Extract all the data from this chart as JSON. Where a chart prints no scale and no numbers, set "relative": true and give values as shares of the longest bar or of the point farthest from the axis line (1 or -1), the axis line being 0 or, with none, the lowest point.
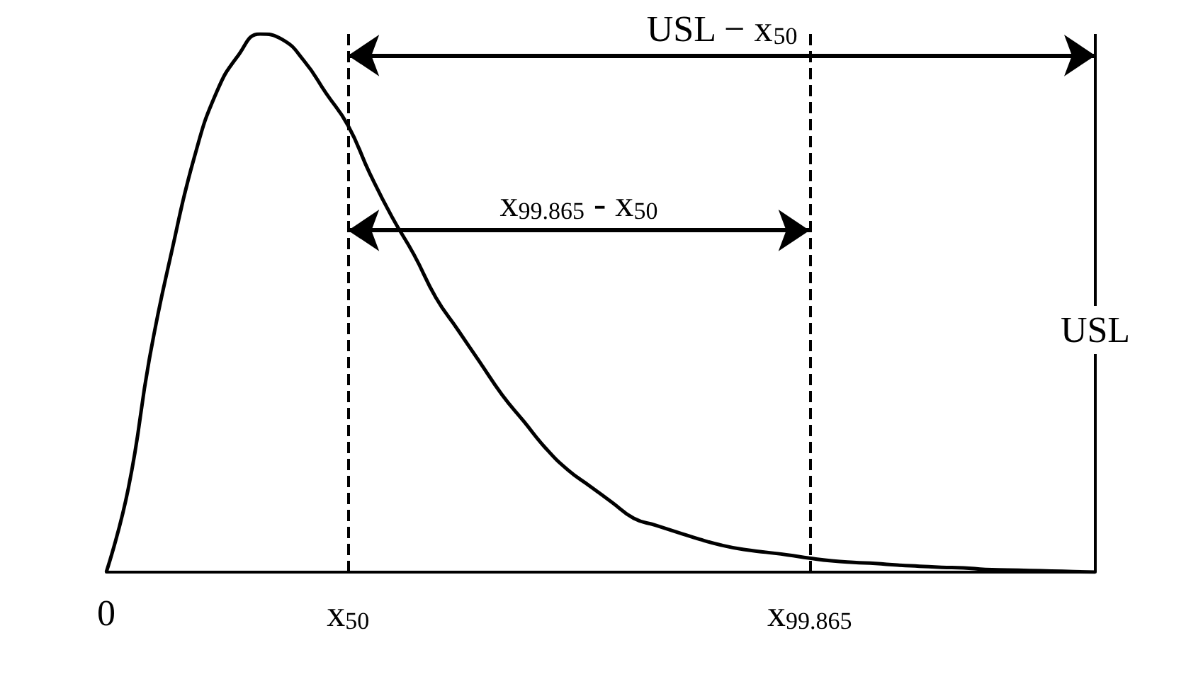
{
  "chart_data": {
    "type": "line",
    "relative": true,
    "tick_labels": "x",
    "grid": false,
    "marker": "none",
    "line_style": "solid",
    "categories": [
      "0",
      null,
      null,
      null,
      null,
      null,
      null,
      null,
      null,
      null,
      null,
      "x$_{50}$",
      null,
      null,
      null,
      null,
      null,
      null,
      null,
      null,
      null,
      null,
      null,
      null,
      null,
      null,
      null,
      null,
      null,
      null,
      null,
      null,
      "x$_{99.865}$",
      null,
      null,
      null,
      null,
      null,
      null,
      null,
      null,
      null,
      null,
      null,
      null,
      null
    ],
    "series": [
      {
        "color": "#000000",
        "values": [
          0,
          0.155,
          0.405,
          0.6,
          0.77,
          0.89,
          0.96,
          1,
          0.99,
          0.95,
          0.89,
          0.83,
          0.74,
          0.66,
          0.59,
          0.51,
          0.45,
          0.39,
          0.33,
          0.28,
          0.23,
          0.19,
          0.16,
          0.13,
          0.1,
          0.087,
          0.074,
          0.061,
          0.05,
          0.042,
          0.037,
          0.032,
          0.026,
          0.021,
          0.018,
          0.016,
          0.013,
          0.011,
          0.009,
          0.008,
          0.005,
          0.004,
          0.003,
          0.002,
          0.001,
          0
        ]
      }
    ],
    "ref_lines": [
      {
        "axis": "x",
        "value": "x$_{50}$",
        "label": null,
        "line_style": "dashed",
        "color": "#000000"
      },
      {
        "axis": "x",
        "value": "x$_{99.865}$",
        "label": null,
        "line_style": "dashed",
        "color": "#000000"
      },
      {
        "axis": "x",
        "value": null,
        "label": "USL",
        "line_style": "solid",
        "color": "#000000"
      }
    ],
    "annotations": [
      "USL − x$_{50}$",
      "x$_{99.865}$ - x$_{50}$"
    ]
  }
}
